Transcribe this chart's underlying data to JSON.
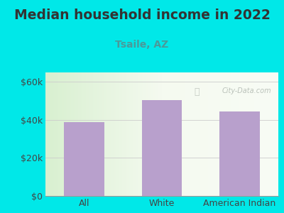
{
  "title": "Median household income in 2022",
  "subtitle": "Tsaile, AZ",
  "categories": [
    "All",
    "White",
    "American Indian"
  ],
  "values": [
    39000,
    50500,
    44500
  ],
  "bar_color": "#b8a0cc",
  "background_color": "#00e8e8",
  "plot_bg_color": "#e8f5e0",
  "title_color": "#333333",
  "subtitle_color": "#4a9a9a",
  "tick_color": "#444444",
  "ylim": [
    0,
    65000
  ],
  "yticks": [
    0,
    20000,
    40000,
    60000
  ],
  "ytick_labels": [
    "$0",
    "$20k",
    "$40k",
    "$60k"
  ],
  "watermark": "City-Data.com",
  "title_fontsize": 13.5,
  "subtitle_fontsize": 10,
  "tick_fontsize": 9
}
